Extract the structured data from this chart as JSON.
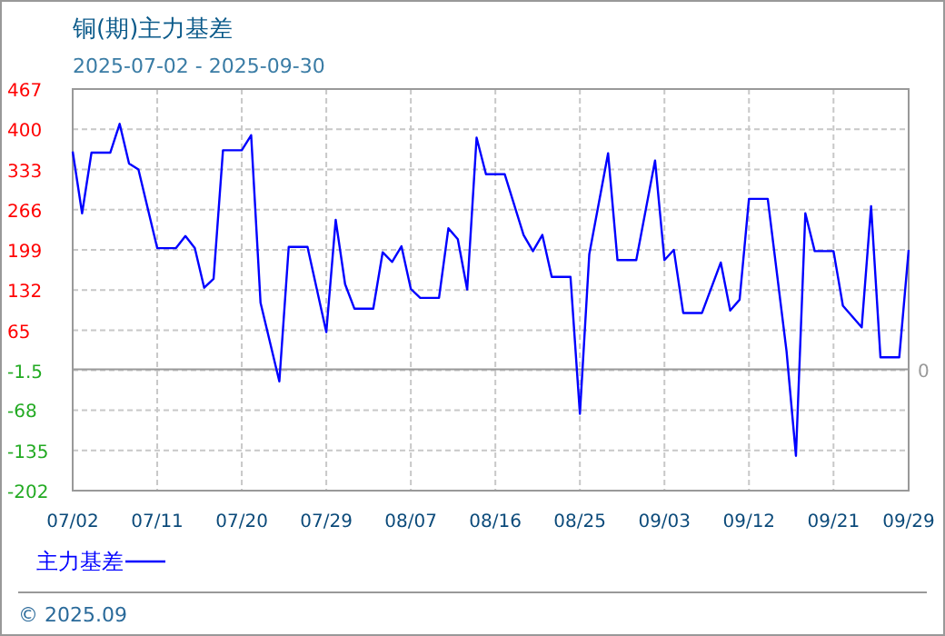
{
  "chart_data": {
    "type": "line",
    "title": "铜(期)主力基差",
    "subtitle": "2025-07-02 - 2025-09-30",
    "x": [
      "--07-02",
      "--07-03",
      "--07-04",
      "--07-06",
      "--07-07",
      "--07-08",
      "--07-09",
      "--07-11",
      "--07-13",
      "--07-14",
      "--07-15",
      "--07-16",
      "--07-17",
      "--07-18",
      "--07-20",
      "--07-21",
      "--07-22",
      "--07-24",
      "--07-25",
      "--07-27",
      "--07-29",
      "--07-30",
      "--07-31",
      "--08-01",
      "--08-03",
      "--08-04",
      "--08-05",
      "--08-06",
      "--08-07",
      "--08-08",
      "--08-10",
      "--08-11",
      "--08-12",
      "--08-13",
      "--08-14",
      "--08-15",
      "--08-17",
      "--08-19",
      "--08-20",
      "--08-21",
      "--08-22",
      "--08-24",
      "--08-25",
      "--08-26",
      "--08-28",
      "--08-29",
      "--08-31",
      "--09-02",
      "--09-03",
      "--09-04",
      "--09-05",
      "--09-07",
      "--09-09",
      "--09-10",
      "--09-11",
      "--09-12",
      "--09-14",
      "--09-16",
      "--09-17",
      "--09-18",
      "--09-19",
      "--09-21",
      "--09-22",
      "--09-24",
      "--09-25",
      "--09-26",
      "--09-28",
      "--09-29"
    ],
    "series": [
      {
        "name": "主力基差",
        "color": "#0000ff",
        "values": [
          363,
          260,
          361,
          361,
          409,
          343,
          333,
          202,
          202,
          222,
          202,
          136,
          151,
          365,
          365,
          390,
          111,
          -20,
          204,
          204,
          62,
          249,
          142,
          101,
          101,
          195,
          179,
          205,
          134,
          119,
          119,
          235,
          217,
          133,
          386,
          325,
          325,
          224,
          197,
          224,
          154,
          154,
          -74,
          192,
          360,
          182,
          182,
          348,
          182,
          199,
          94,
          94,
          178,
          98,
          116,
          284,
          284,
          30,
          -144,
          260,
          197,
          197,
          106,
          70,
          272,
          20,
          20,
          199
        ]
      }
    ],
    "xlim": [
      "--07-02",
      "--09-29"
    ],
    "xticks": [
      {
        "value": "--07-02",
        "label": "07/02"
      },
      {
        "value": "--07-11",
        "label": "07/11"
      },
      {
        "value": "--07-20",
        "label": "07/20"
      },
      {
        "value": "--07-29",
        "label": "07/29"
      },
      {
        "value": "--08-07",
        "label": "08/07"
      },
      {
        "value": "--08-16",
        "label": "08/16"
      },
      {
        "value": "--08-25",
        "label": "08/25"
      },
      {
        "value": "--09-03",
        "label": "09/03"
      },
      {
        "value": "--09-12",
        "label": "09/12"
      },
      {
        "value": "--09-21",
        "label": "09/21"
      },
      {
        "value": "--09-29",
        "label": "09/29"
      }
    ],
    "ylim": [
      -202,
      467
    ],
    "yticks": [
      467,
      400,
      333,
      266,
      199,
      132,
      65,
      -1.5,
      -68,
      -135,
      -202
    ],
    "ref_lines": [
      {
        "axis": "y",
        "value": 0,
        "label": "0",
        "color": "#999999"
      }
    ],
    "grid": true,
    "legend": "bottom left",
    "line_style": "solid",
    "marker": "none",
    "annotations": [
      "© 2025.09"
    ]
  }
}
